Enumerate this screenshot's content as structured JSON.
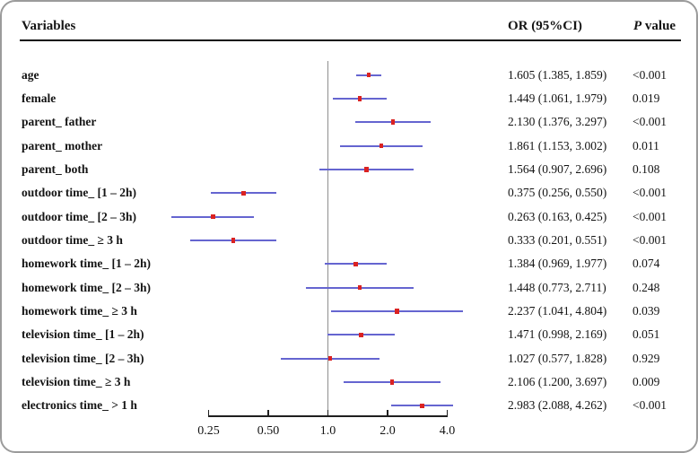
{
  "figure": {
    "header": {
      "variables": "Variables",
      "or_ci": "OR (95%CI)",
      "p_italic": "P",
      "p_rest": " value"
    }
  },
  "colors": {
    "ci_line": "#6565d0",
    "marker": "#da2222",
    "ref_line": "#8f8f8f",
    "axis": "#1f1f1f",
    "border": "#9b9b9b",
    "text": "#141414"
  },
  "chart_data": {
    "type": "forest",
    "title": "",
    "xlabel": "",
    "ylabel": "",
    "x_axis": {
      "scale": "log2",
      "xlim": [
        0.25,
        4.0
      ],
      "ticks": [
        0.25,
        0.5,
        1.0,
        2.0,
        4.0
      ],
      "tick_labels": [
        "0.25",
        "0.50",
        "1.0",
        "2.0",
        "4.0"
      ],
      "reference_line": 1.0
    },
    "rows": [
      {
        "label": "age",
        "or": 1.605,
        "ci_low": 1.385,
        "ci_high": 1.859,
        "or_ci_text": "1.605 (1.385, 1.859)",
        "p_text": "<0.001"
      },
      {
        "label": "female",
        "or": 1.449,
        "ci_low": 1.061,
        "ci_high": 1.979,
        "or_ci_text": "1.449 (1.061, 1.979)",
        "p_text": "0.019"
      },
      {
        "label": "parent_ father",
        "or": 2.13,
        "ci_low": 1.376,
        "ci_high": 3.297,
        "or_ci_text": "2.130 (1.376, 3.297)",
        "p_text": "<0.001"
      },
      {
        "label": "parent_ mother",
        "or": 1.861,
        "ci_low": 1.153,
        "ci_high": 3.002,
        "or_ci_text": "1.861 (1.153, 3.002)",
        "p_text": "0.011"
      },
      {
        "label": "parent_ both",
        "or": 1.564,
        "ci_low": 0.907,
        "ci_high": 2.696,
        "or_ci_text": "1.564 (0.907, 2.696)",
        "p_text": "0.108"
      },
      {
        "label": "outdoor time_ [1 – 2h)",
        "or": 0.375,
        "ci_low": 0.256,
        "ci_high": 0.55,
        "or_ci_text": "0.375 (0.256, 0.550)",
        "p_text": "<0.001"
      },
      {
        "label": "outdoor time_ [2 – 3h)",
        "or": 0.263,
        "ci_low": 0.163,
        "ci_high": 0.425,
        "or_ci_text": "0.263 (0.163, 0.425)",
        "p_text": "<0.001"
      },
      {
        "label": "outdoor time_ ≥ 3 h",
        "or": 0.333,
        "ci_low": 0.201,
        "ci_high": 0.551,
        "or_ci_text": "0.333 (0.201, 0.551)",
        "p_text": "<0.001"
      },
      {
        "label": "homework time_ [1 – 2h)",
        "or": 1.384,
        "ci_low": 0.969,
        "ci_high": 1.977,
        "or_ci_text": "1.384 (0.969, 1.977)",
        "p_text": "0.074"
      },
      {
        "label": "homework time_ [2 – 3h)",
        "or": 1.448,
        "ci_low": 0.773,
        "ci_high": 2.711,
        "or_ci_text": "1.448 (0.773, 2.711)",
        "p_text": "0.248"
      },
      {
        "label": "homework time_ ≥ 3 h",
        "or": 2.237,
        "ci_low": 1.041,
        "ci_high": 4.804,
        "or_ci_text": "2.237 (1.041, 4.804)",
        "p_text": "0.039"
      },
      {
        "label": "television time_ [1 – 2h)",
        "or": 1.471,
        "ci_low": 0.998,
        "ci_high": 2.169,
        "or_ci_text": "1.471 (0.998, 2.169)",
        "p_text": "0.051"
      },
      {
        "label": "television time_ [2 – 3h)",
        "or": 1.027,
        "ci_low": 0.577,
        "ci_high": 1.828,
        "or_ci_text": "1.027 (0.577, 1.828)",
        "p_text": "0.929"
      },
      {
        "label": "television time_ ≥ 3 h",
        "or": 2.106,
        "ci_low": 1.2,
        "ci_high": 3.697,
        "or_ci_text": "2.106 (1.200, 3.697)",
        "p_text": "0.009"
      },
      {
        "label": "electronics time_ > 1 h",
        "or": 2.983,
        "ci_low": 2.088,
        "ci_high": 4.262,
        "or_ci_text": "2.983 (2.088, 4.262)",
        "p_text": "<0.001"
      }
    ]
  }
}
